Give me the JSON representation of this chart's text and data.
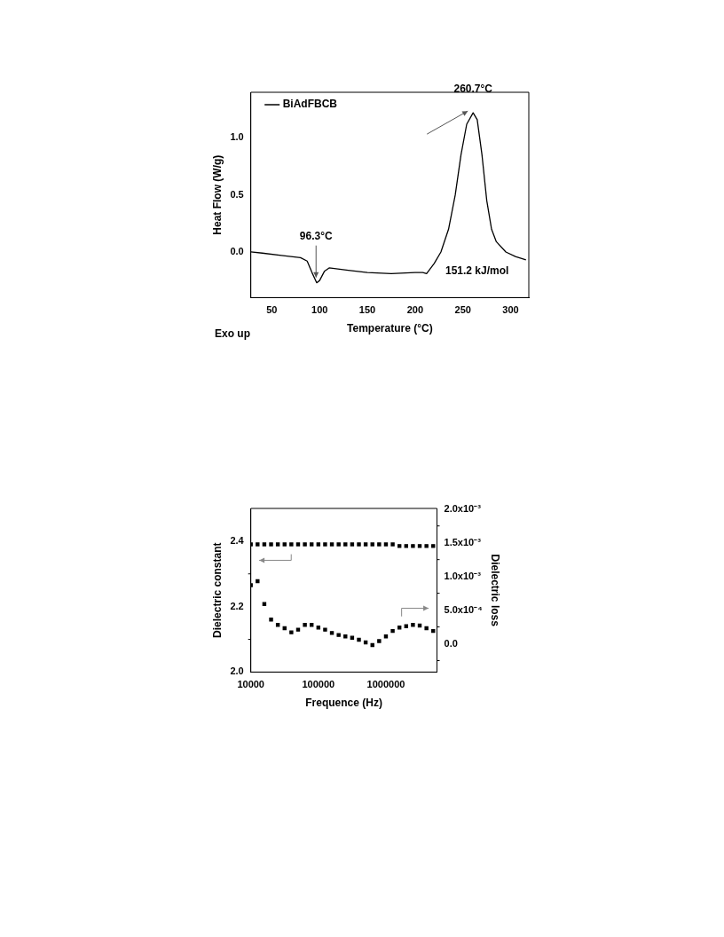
{
  "chart_data": [
    {
      "type": "line",
      "xlabel": "Temperature (°C)",
      "ylabel": "Heat Flow (W/g)",
      "x": [
        28,
        40,
        60,
        80,
        87,
        92,
        97,
        100,
        105,
        110,
        130,
        150,
        175,
        200,
        208,
        212,
        220,
        227,
        235,
        242,
        248,
        254,
        260.7,
        265,
        270,
        275,
        280,
        285,
        295,
        305,
        316
      ],
      "series": [
        {
          "name": "BiAdFBCB",
          "color": "#000000",
          "values": [
            0.0,
            -0.01,
            -0.03,
            -0.05,
            -0.08,
            -0.18,
            -0.27,
            -0.25,
            -0.17,
            -0.14,
            -0.16,
            -0.18,
            -0.19,
            -0.18,
            -0.18,
            -0.19,
            -0.1,
            0.0,
            0.2,
            0.5,
            0.85,
            1.12,
            1.22,
            1.16,
            0.85,
            0.45,
            0.2,
            0.09,
            0.0,
            -0.04,
            -0.07
          ]
        }
      ],
      "xlim": [
        28,
        319
      ],
      "ylim": [
        -0.4,
        1.4
      ],
      "xticks": [
        50,
        100,
        150,
        200,
        250,
        300
      ],
      "yticks": [
        {
          "value": 0,
          "label": "0.0"
        },
        0.5,
        {
          "value": 1,
          "label": "1.0"
        }
      ],
      "legend": "top left",
      "marker": "none",
      "line_style": "solid",
      "grid": false,
      "annotations": [
        {
          "text": "260.7°C",
          "x": 260.7,
          "y": 1.22
        },
        {
          "text": "96.3°C",
          "x": 96.3,
          "y": -0.27
        },
        "151.2 kJ/mol",
        "Exo up"
      ]
    },
    {
      "type": "scatter",
      "xlabel": "Frequence (Hz)",
      "ylabel": "Dielectric constant",
      "y2label": "Dielectric loss",
      "x": [
        10000,
        12589,
        15849,
        19953,
        25119,
        31623,
        39811,
        50119,
        63096,
        79433,
        100000,
        125893,
        158489,
        199526,
        251189,
        316228,
        398107,
        501187,
        630957,
        794328,
        1000000,
        1258925,
        1584893,
        1995262,
        2511886,
        3162278,
        3981072,
        5011872
      ],
      "series": [
        {
          "color": "#000000",
          "values": [
            2.39,
            2.39,
            2.39,
            2.39,
            2.39,
            2.39,
            2.39,
            2.39,
            2.39,
            2.39,
            2.39,
            2.39,
            2.39,
            2.39,
            2.39,
            2.39,
            2.39,
            2.39,
            2.39,
            2.39,
            2.39,
            2.39,
            2.385,
            2.385,
            2.385,
            2.385,
            2.385,
            2.385
          ]
        },
        {
          "color": "#000000",
          "axis": "y2",
          "values": [
            0.00087,
            0.00093,
            0.00059,
            0.00036,
            0.00028,
            0.00023,
            0.00017,
            0.00021,
            0.00028,
            0.00028,
            0.00024,
            0.00021,
            0.00016,
            0.00013,
            0.00011,
            9e-05,
            6e-05,
            2e-05,
            -2e-05,
            4e-05,
            0.00011,
            0.00019,
            0.00024,
            0.00026,
            0.00028,
            0.00027,
            0.00023,
            0.00019
          ]
        }
      ],
      "log": "x",
      "xlim": [
        10000,
        5700000
      ],
      "ylim": [
        2.0,
        2.5
      ],
      "y2lim": [
        -0.00042,
        0.00201
      ],
      "xticks": [
        10000,
        100000,
        1000000
      ],
      "yticks": [
        {
          "value": 2,
          "label": "2.0"
        },
        {
          "value": 2.1,
          "label": null
        },
        2.2,
        {
          "value": 2.3,
          "label": null
        },
        2.4
      ],
      "y2ticks": [
        {
          "value": -0.00025,
          "label": null
        },
        {
          "value": 0,
          "label": "0.0"
        },
        {
          "value": 0.00025,
          "label": null
        },
        {
          "value": 0.0005,
          "label": "5.0x10⁻⁴"
        },
        {
          "value": 0.00075,
          "label": null
        },
        {
          "value": 0.001,
          "label": "1.0x10⁻³"
        },
        {
          "value": 0.00125,
          "label": null
        },
        {
          "value": 0.0015,
          "label": "1.5x10⁻³"
        },
        {
          "value": 0.00175,
          "label": null
        },
        {
          "value": 0.002,
          "label": "2.0x10⁻³"
        }
      ],
      "marker": "square",
      "grid": false,
      "legend": false
    }
  ]
}
